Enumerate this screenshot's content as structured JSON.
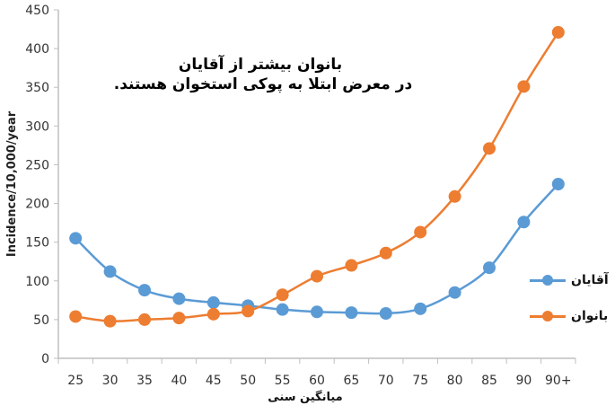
{
  "chart_data": {
    "type": "line",
    "title": "",
    "annotation": [
      "بانوان بیشتر از آقایان",
      "در معرض ابتلا به پوکی استخوان هستند."
    ],
    "xlabel": "میانگین سنی",
    "ylabel": "Incidence/10,000/year",
    "categories": [
      "25",
      "30",
      "35",
      "40",
      "45",
      "50",
      "55",
      "60",
      "65",
      "70",
      "75",
      "80",
      "85",
      "90",
      "90+"
    ],
    "ylim": [
      0,
      450
    ],
    "yticks": [
      0,
      50,
      100,
      150,
      200,
      250,
      300,
      350,
      400,
      450
    ],
    "grid": false,
    "legend_position": "right",
    "series": [
      {
        "name": "آقایان",
        "color": "#5B9BD5",
        "values": [
          155,
          112,
          88,
          77,
          72,
          68,
          63,
          60,
          59,
          58,
          64,
          85,
          117,
          176,
          225
        ]
      },
      {
        "name": "بانوان",
        "color": "#ED7D31",
        "values": [
          54,
          48,
          50,
          52,
          57,
          61,
          82,
          106,
          120,
          136,
          163,
          209,
          271,
          351,
          421
        ]
      }
    ]
  },
  "legend": {
    "items": [
      {
        "label": "آقایان",
        "color": "#5B9BD5"
      },
      {
        "label": "بانوان",
        "color": "#ED7D31"
      }
    ]
  }
}
